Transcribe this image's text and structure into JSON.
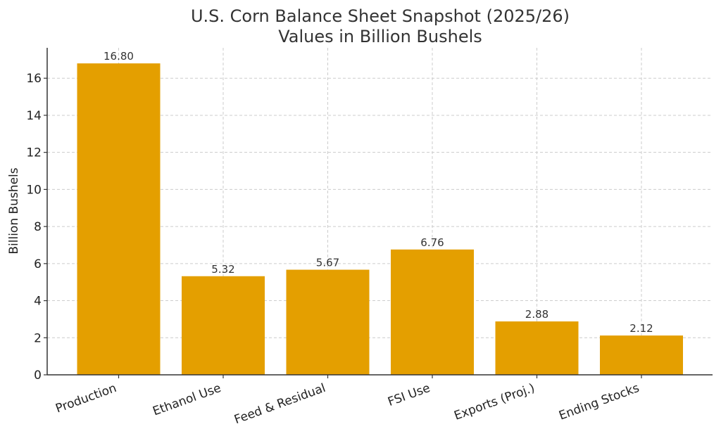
{
  "chart_data": {
    "type": "bar",
    "title": "U.S. Corn Balance Sheet Snapshot (2025/26)",
    "subtitle": "Values in Billion Bushels",
    "xlabel": "",
    "ylabel": "Billion Bushels",
    "categories": [
      "Production",
      "Ethanol Use",
      "Feed & Residual",
      "FSI Use",
      "Exports (Proj.)",
      "Ending Stocks"
    ],
    "values": [
      16.8,
      5.32,
      5.67,
      6.76,
      2.88,
      2.12
    ],
    "data_labels": [
      "16.80",
      "5.32",
      "5.67",
      "6.76",
      "2.88",
      "2.12"
    ],
    "ylim": [
      0,
      17.64
    ],
    "yticks": [
      0,
      2,
      4,
      6,
      8,
      10,
      12,
      14,
      16
    ],
    "grid": true,
    "bar_color": "#E49F00"
  }
}
